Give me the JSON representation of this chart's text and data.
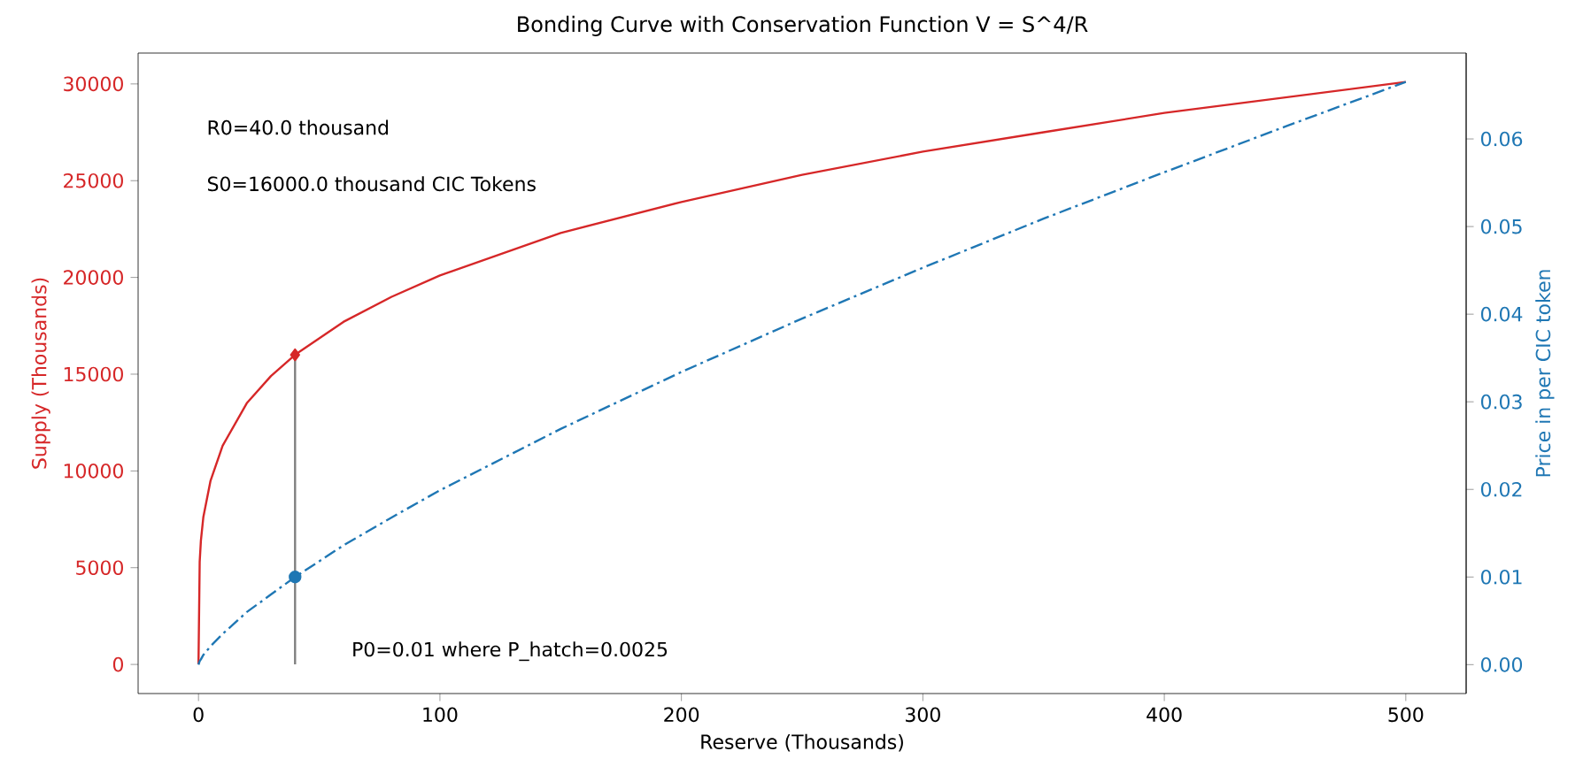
{
  "chart_data": {
    "type": "line",
    "title": "Bonding Curve with Conservation Function V = S^4/R",
    "xlabel": "Reserve (Thousands)",
    "ylabel": "Supply (Thousands)",
    "y2label": "Price in per CIC token",
    "xlim": [
      -25,
      525
    ],
    "xticks": [
      0,
      100,
      200,
      300,
      400,
      500
    ],
    "ylim": [
      -1504,
      31594
    ],
    "yticks": [
      0,
      5000,
      10000,
      15000,
      20000,
      25000,
      30000
    ],
    "y2lim": [
      -0.0033,
      0.0698
    ],
    "y2ticks": [
      {
        "value": 0,
        "label": "0.00"
      },
      0.01,
      0.02,
      0.03,
      0.04,
      0.05,
      0.06
    ],
    "grid": false,
    "annotations": [
      "R0=40.0 thousand",
      "S0=16000.0 thousand CIC Tokens",
      "P0=0.01 where P_hatch=0.0025"
    ],
    "series": [
      {
        "color": "#d62728",
        "line_style": "solid",
        "marker": "none",
        "x": [
          0,
          0.5,
          1,
          2,
          5,
          10,
          20,
          30,
          40,
          60,
          80,
          100,
          150,
          200,
          250,
          300,
          350,
          400,
          450,
          500
        ],
        "values": [
          0,
          5300,
          6400,
          7600,
          9500,
          11300,
          13500,
          14900,
          16000,
          17700,
          19000,
          20100,
          22300,
          23900,
          25300,
          26500,
          27500,
          28500,
          29300,
          30100
        ]
      },
      {
        "axis": "y2",
        "color": "#1f77b4",
        "line_style": "dashdot",
        "marker": "none",
        "x": [
          0,
          0.5,
          1,
          2,
          5,
          10,
          20,
          30,
          40,
          60,
          80,
          100,
          150,
          200,
          250,
          300,
          350,
          400,
          450,
          500
        ],
        "values": [
          0,
          0.0004,
          0.0006,
          0.0011,
          0.0021,
          0.0035,
          0.006,
          0.008,
          0.01,
          0.0136,
          0.0168,
          0.0199,
          0.0269,
          0.0334,
          0.0395,
          0.0453,
          0.0509,
          0.0562,
          0.0614,
          0.0665
        ]
      },
      {
        "type": "line",
        "color": "#808080",
        "line_style": "solid",
        "marker": "none",
        "x": [
          40,
          40
        ],
        "values": [
          0,
          16000
        ]
      },
      {
        "type": "scatter",
        "color": "#d62728",
        "marker": "diamond",
        "x": [
          40
        ],
        "values": [
          16000
        ]
      },
      {
        "type": "scatter",
        "axis": "y2",
        "color": "#1f77b4",
        "marker": "circle",
        "x": [
          40
        ],
        "values": [
          0.01
        ]
      }
    ]
  }
}
